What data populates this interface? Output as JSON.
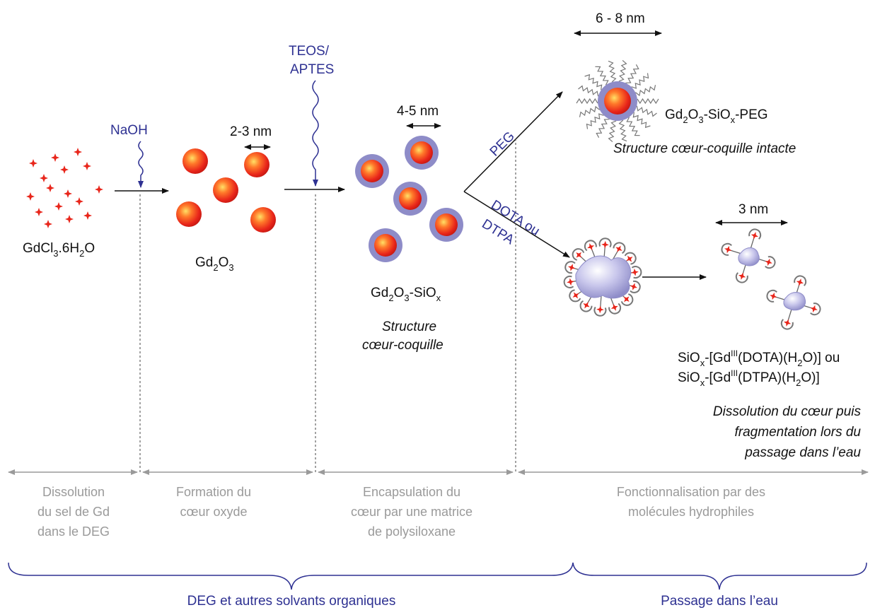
{
  "reagents": {
    "naoh": "NaOH",
    "teos_line1": "TEOS/",
    "teos_line2": "APTES",
    "peg": "PEG",
    "dota_line1": "DOTA ou",
    "dota_line2": "DTPA"
  },
  "sizes": {
    "gd2o3": "2-3 nm",
    "core_shell": "4-5 nm",
    "peg": "6 - 8 nm",
    "fragment": "3 nm"
  },
  "compounds": {
    "gdcl3": {
      "a": "GdCl",
      "a_sub": "3",
      "b": ".6H",
      "b_sub": "2",
      "c": "O"
    },
    "gd2o3": {
      "a": "Gd",
      "a_sub": "2",
      "b": "O",
      "b_sub": "3"
    },
    "gd2o3_siox": {
      "a": "Gd",
      "a_sub": "2",
      "b": "O",
      "b_sub": "3",
      "c": "-SiO",
      "c_sub": "x"
    },
    "gd2o3_siox_peg": {
      "a": "Gd",
      "a_sub": "2",
      "b": "O",
      "b_sub": "3",
      "c": "-SiO",
      "c_sub": "x",
      "d": "-PEG"
    },
    "siox_dota": {
      "a": "SiO",
      "a_sub": "x",
      "b": "-[Gd",
      "b_sup": "III",
      "c": "(DOTA)(H",
      "c_sub": "2",
      "d": "O)] ou"
    },
    "siox_dtpa": {
      "a": "SiO",
      "a_sub": "x",
      "b": "-[Gd",
      "b_sup": "III",
      "c": "(DTPA)(H",
      "c_sub": "2",
      "d": "O)]"
    }
  },
  "descriptions": {
    "core_shell_1": "Structure",
    "core_shell_2": "cœur-coquille",
    "peg_intact": "Structure cœur-coquille intacte",
    "dissolution_1": "Dissolution du cœur puis",
    "dissolution_2": "fragmentation lors du",
    "dissolution_3": "passage dans l’eau"
  },
  "stages": [
    {
      "lines": [
        "Dissolution",
        "du sel de Gd",
        "dans le DEG"
      ]
    },
    {
      "lines": [
        "Formation du",
        "cœur oxyde"
      ]
    },
    {
      "lines": [
        "Encapsulation du",
        "cœur par une matrice",
        "de polysiloxane"
      ]
    },
    {
      "lines": [
        "Fonctionnalisation par des",
        "molécules hydrophiles"
      ]
    }
  ],
  "phases": {
    "organic": "DEG et autres solvants organiques",
    "water": "Passage dans l’eau"
  },
  "colors": {
    "particle_core": "#e8251a",
    "shell": "#8e8cc8",
    "reagent_blue": "#2e3192",
    "timeline_grey": "#9a9a9a"
  }
}
